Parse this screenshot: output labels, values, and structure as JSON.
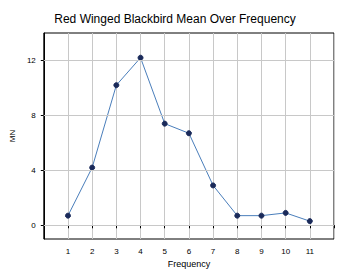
{
  "chart_data": {
    "type": "line",
    "title": "Red Winged Blackbird Mean Over Frequency",
    "x_label": "Frequency",
    "y_label": "MN",
    "x": [
      1,
      2,
      3,
      4,
      5,
      6,
      7,
      8,
      9,
      10,
      11
    ],
    "values": [
      0.7,
      4.2,
      10.2,
      12.2,
      7.4,
      6.7,
      2.9,
      0.7,
      0.7,
      0.9,
      0.3
    ],
    "color": "#4a7ebb",
    "marker": "circle",
    "xlim": [
      0,
      12
    ],
    "xticks": [
      1,
      2,
      3,
      4,
      5,
      6,
      7,
      8,
      9,
      10,
      11
    ],
    "ylim": [
      -1,
      14
    ],
    "yticks": [
      0,
      4,
      8,
      12
    ],
    "grid": true
  }
}
